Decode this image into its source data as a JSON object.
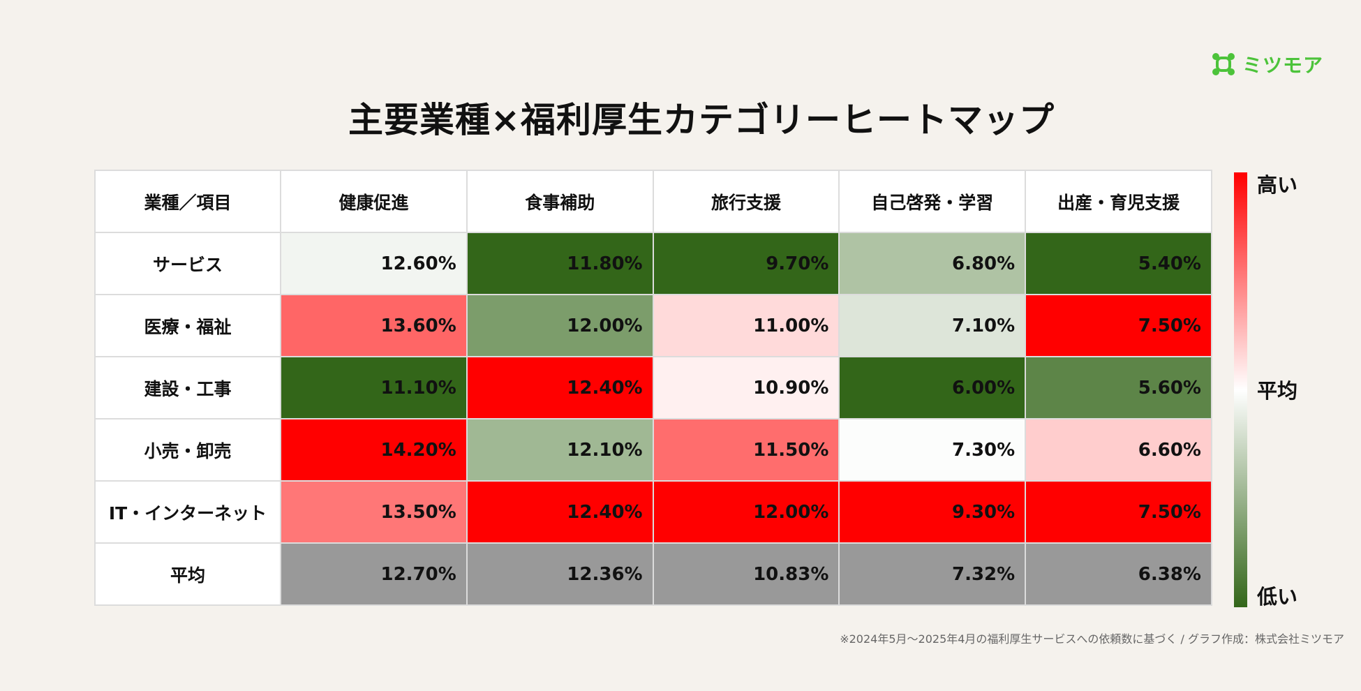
{
  "brand": {
    "name": "ミツモア",
    "color": "#4cc33a"
  },
  "chart_data": {
    "type": "heatmap",
    "title": "主要業種×福利厚生カテゴリーヒートマップ",
    "corner_label": "業種／項目",
    "columns": [
      "健康促進",
      "食事補助",
      "旅行支援",
      "自己啓発・学習",
      "出産・育児支援"
    ],
    "rows": [
      {
        "name": "サービス",
        "values": [
          12.6,
          11.8,
          9.7,
          6.8,
          5.4
        ],
        "labels": [
          "12.60%",
          "11.80%",
          "9.70%",
          "6.80%",
          "5.40%"
        ]
      },
      {
        "name": "医療・福祉",
        "values": [
          13.6,
          12.0,
          11.0,
          7.1,
          7.5
        ],
        "labels": [
          "13.60%",
          "12.00%",
          "11.00%",
          "7.10%",
          "7.50%"
        ]
      },
      {
        "name": "建設・工事",
        "values": [
          11.1,
          12.4,
          10.9,
          6.0,
          5.6
        ],
        "labels": [
          "11.10%",
          "12.40%",
          "10.90%",
          "6.00%",
          "5.60%"
        ]
      },
      {
        "name": "小売・卸売",
        "values": [
          14.2,
          12.1,
          11.5,
          7.3,
          6.6
        ],
        "labels": [
          "14.20%",
          "12.10%",
          "11.50%",
          "7.30%",
          "6.60%"
        ]
      },
      {
        "name": "IT・インターネット",
        "values": [
          13.5,
          12.4,
          12.0,
          9.3,
          7.5
        ],
        "labels": [
          "13.50%",
          "12.40%",
          "12.00%",
          "9.30%",
          "7.50%"
        ]
      }
    ],
    "average_row": {
      "name": "平均",
      "values": [
        12.7,
        12.36,
        10.83,
        7.32,
        6.38
      ],
      "labels": [
        "12.70%",
        "12.36%",
        "10.83%",
        "7.32%",
        "6.38%"
      ],
      "color": "#999999"
    },
    "colors": {
      "high": "#ff0000",
      "mid": "#ffffff",
      "low": "#336619"
    },
    "legend": {
      "high": "高い",
      "mid": "平均",
      "low": "低い",
      "placement": "right"
    }
  },
  "footnote": "※2024年5月〜2025年4月の福利厚生サービスへの依頼数に基づく / グラフ作成：株式会社ミツモア"
}
